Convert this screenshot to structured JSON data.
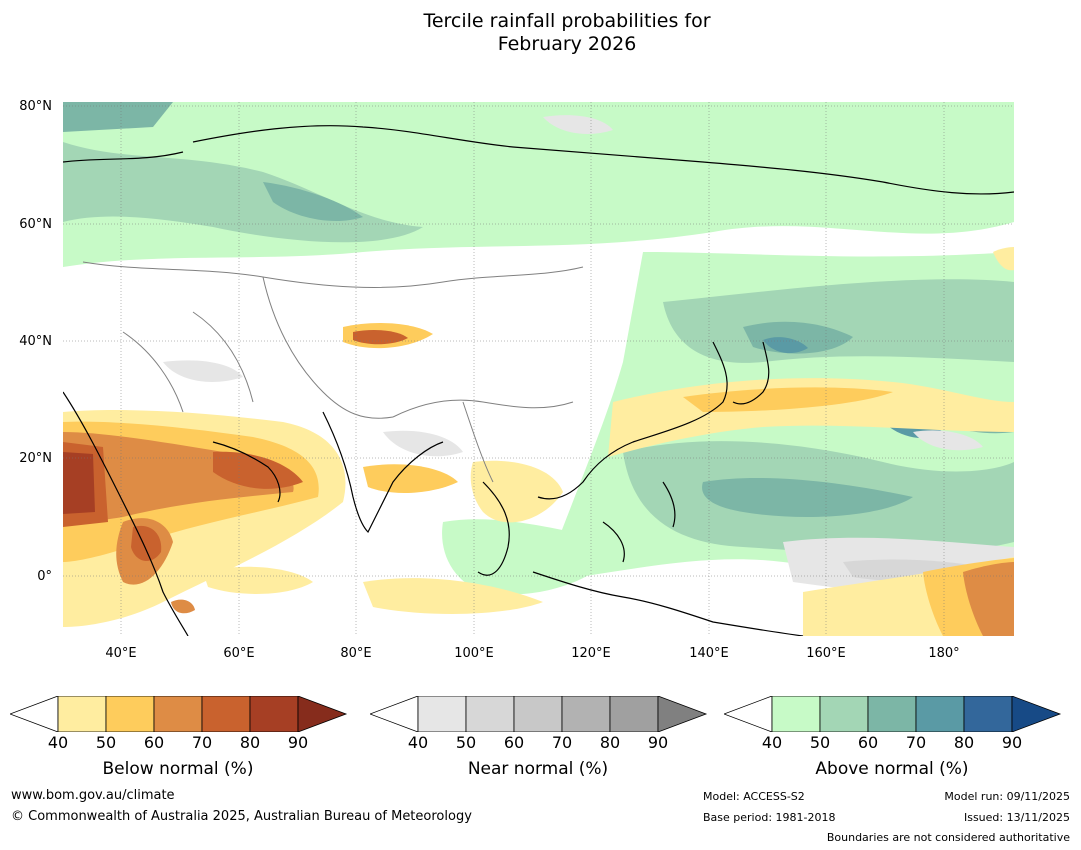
{
  "title": {
    "line1": "Tercile rainfall probabilities for",
    "line2": "February 2026"
  },
  "map": {
    "region": "Asia and western Pacific",
    "lat_labels": [
      "80°N",
      "60°N",
      "40°N",
      "20°N",
      "0°"
    ],
    "lon_labels": [
      "40°E",
      "60°E",
      "80°E",
      "100°E",
      "120°E",
      "140°E",
      "160°E",
      "180°"
    ],
    "colors": {
      "below": [
        "#ffeda0",
        "#fecc5c",
        "#de8c45",
        "#c9622e",
        "#a63f24",
        "#862c1c"
      ],
      "near": [
        "#e6e6e6",
        "#d7d7d7",
        "#c8c8c8",
        "#b2b2b2",
        "#a0a0a0",
        "#808080"
      ],
      "above": [
        "#c7fac7",
        "#a3d6b5",
        "#7cb6a6",
        "#5a9aa5",
        "#33679b",
        "#174a86"
      ]
    }
  },
  "colorbars": [
    {
      "title": "Below normal (%)",
      "ticks": [
        "40",
        "50",
        "60",
        "70",
        "80",
        "90"
      ]
    },
    {
      "title": "Near normal (%)",
      "ticks": [
        "40",
        "50",
        "60",
        "70",
        "80",
        "90"
      ]
    },
    {
      "title": "Above normal (%)",
      "ticks": [
        "40",
        "50",
        "60",
        "70",
        "80",
        "90"
      ]
    }
  ],
  "footer": {
    "website": "www.bom.gov.au/climate",
    "copyright": "© Commonwealth of Australia 2025, Australian Bureau of Meteorology",
    "model": "Model: ACCESS-S2",
    "base_period": "Base period: 1981-2018",
    "model_run": "Model run: 09/11/2025",
    "issued": "Issued: 13/11/2025",
    "disclaimer": "Boundaries are not considered authoritative"
  }
}
